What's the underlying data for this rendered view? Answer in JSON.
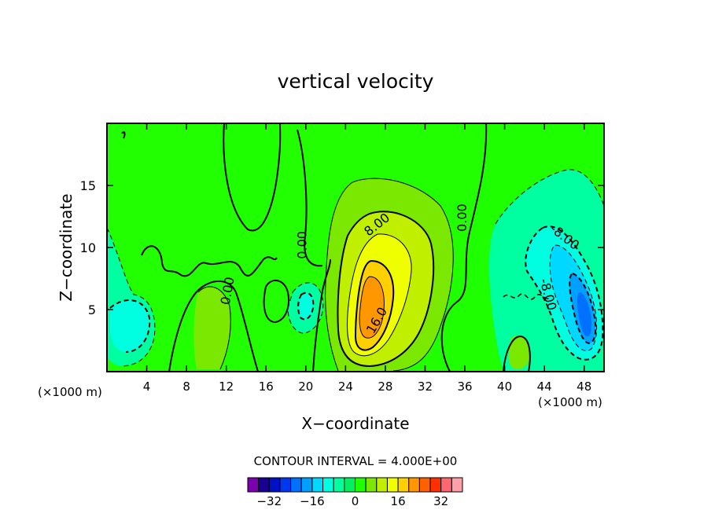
{
  "chart_data": {
    "type": "contour",
    "title": "vertical velocity",
    "xlabel": "X−coordinate",
    "ylabel": "Z−coordinate",
    "x_unit_left": "(×1000 m)",
    "x_unit_right": "(×1000 m)",
    "xlim": [
      0,
      50
    ],
    "ylim": [
      0,
      20
    ],
    "x_ticks": [
      4,
      8,
      12,
      16,
      20,
      24,
      28,
      32,
      36,
      40,
      44,
      48
    ],
    "y_ticks": [
      5,
      10,
      15
    ],
    "contour_interval_text": "CONTOUR INTERVAL = 4.000E+00",
    "contour_labels": [
      {
        "text": "8.00",
        "x": 27.2,
        "y": 11.8,
        "angle": -38
      },
      {
        "text": "16.0",
        "x": 27.2,
        "y": 4.1,
        "angle": -60
      },
      {
        "text": "0.00",
        "x": 19.7,
        "y": 10.2,
        "angle": -90
      },
      {
        "text": "0.00",
        "x": 12.2,
        "y": 6.5,
        "angle": -80
      },
      {
        "text": "0.00",
        "x": 35.8,
        "y": 12.4,
        "angle": -90
      },
      {
        "text": "-8.00",
        "x": 46.0,
        "y": 10.8,
        "angle": 38
      },
      {
        "text": "-8.00",
        "x": 44.3,
        "y": 6.2,
        "angle": 75
      }
    ],
    "features": [
      {
        "kind": "updraft",
        "x": 26.2,
        "z": 5.5,
        "max": 20
      },
      {
        "kind": "downdraft",
        "x": 47.0,
        "z": 5.0,
        "min": -20
      },
      {
        "kind": "downdraft",
        "x": 3.5,
        "z": 3.5,
        "min": -8
      },
      {
        "kind": "downdraft",
        "x": 19.8,
        "z": 5.5,
        "min": -6
      },
      {
        "kind": "updraft",
        "x": 10.0,
        "z": 5.0,
        "max": 6
      }
    ],
    "colorbar": {
      "levels": [
        -36,
        -32,
        -28,
        -24,
        -20,
        -16,
        -12,
        -8,
        -4,
        0,
        4,
        8,
        12,
        16,
        20,
        24,
        28,
        32,
        36
      ],
      "colors": [
        "#7a00b0",
        "#1a0090",
        "#0010c8",
        "#0038f0",
        "#0070ff",
        "#00a0ff",
        "#00d8ff",
        "#00ffe0",
        "#00ffa0",
        "#00f060",
        "#1eff00",
        "#7ae800",
        "#c0f000",
        "#f0ff00",
        "#ffd000",
        "#ff9800",
        "#ff6000",
        "#ff3000",
        "#ff6870",
        "#ffa0a8"
      ],
      "tick_labels": [
        "−32",
        "−16",
        "0",
        "16",
        "32"
      ],
      "tick_values": [
        -32,
        -16,
        0,
        16,
        32
      ]
    }
  }
}
